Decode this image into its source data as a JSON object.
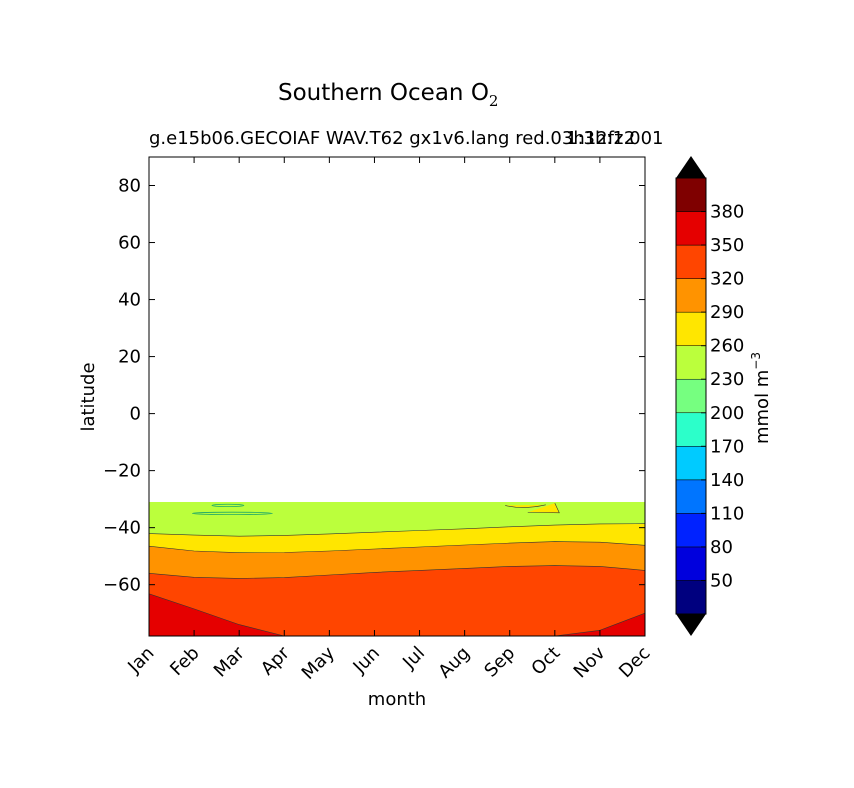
{
  "chart_data": {
    "type": "contourf",
    "title": "Southern Ocean O",
    "title_subscript": "2",
    "subtitle": "g.e15b06.GECOIAF WAV.T62 gx1v6.lang red.03h12fz.001",
    "subtitle_right": "1:3h:12",
    "xlabel": "month",
    "ylabel": "latitude",
    "xlim": [
      0,
      11
    ],
    "ylim": [
      -78,
      90
    ],
    "x_ticks": [
      "Jan",
      "Feb",
      "Mar",
      "Apr",
      "May",
      "Jun",
      "Jul",
      "Aug",
      "Sep",
      "Oct",
      "Nov",
      "Dec"
    ],
    "y_ticks": [
      80,
      60,
      40,
      20,
      0,
      -20,
      -40,
      -60
    ],
    "y_tick_labels": [
      "80",
      "60",
      "40",
      "20",
      "0",
      "−20",
      "−40",
      "−60"
    ],
    "data_top_latitude": -31,
    "contour_boundaries": [
      {
        "level": 260,
        "lat": [
          -42.1,
          -42.6,
          -43.0,
          -42.7,
          -42.2,
          -41.6,
          -41.0,
          -40.4,
          -39.7,
          -39.1,
          -38.7,
          -38.6
        ]
      },
      {
        "level": 290,
        "lat": [
          -46.5,
          -48.2,
          -48.8,
          -48.7,
          -48.2,
          -47.5,
          -46.8,
          -46.1,
          -45.4,
          -44.9,
          -45.1,
          -46.2
        ]
      },
      {
        "level": 320,
        "lat": [
          -56.0,
          -57.4,
          -57.8,
          -57.5,
          -56.6,
          -55.7,
          -55.0,
          -54.3,
          -53.6,
          -53.3,
          -53.6,
          -55.0
        ]
      },
      {
        "level": 350,
        "lat": [
          -63.2,
          -68.5,
          -74.0,
          -78.0,
          -78.0,
          -78.0,
          -78.0,
          -78.0,
          -78.0,
          -78.0,
          -76.0,
          -70.0
        ]
      }
    ],
    "colorbar": {
      "label": "mmol m",
      "label_superscript": "−3",
      "tick_labels": [
        "380",
        "350",
        "320",
        "290",
        "260",
        "230",
        "200",
        "170",
        "140",
        "110",
        "80",
        "50"
      ],
      "levels": [
        20,
        50,
        80,
        110,
        140,
        170,
        200,
        230,
        260,
        290,
        320,
        350,
        380,
        410
      ],
      "colors": [
        "#00007f",
        "#0000dd",
        "#0022ff",
        "#0075ff",
        "#00cbff",
        "#2cffca",
        "#76ff80",
        "#bbff3c",
        "#ffe600",
        "#ff9300",
        "#ff4500",
        "#e50000",
        "#7f0000"
      ],
      "under_color": "#000000",
      "over_color": "#000000"
    }
  }
}
